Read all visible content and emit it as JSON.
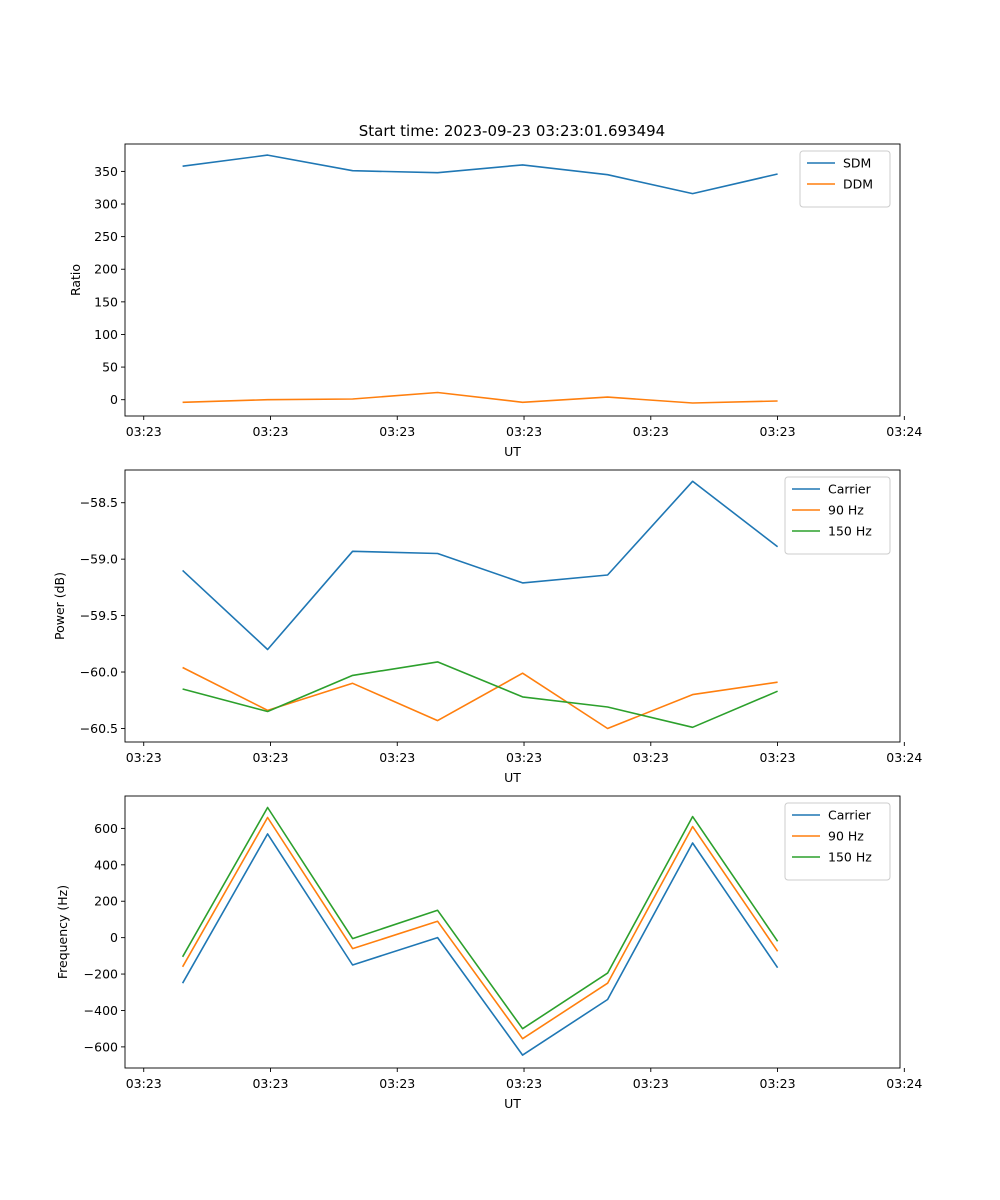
{
  "chart_data": [
    {
      "type": "line",
      "title": "Start time: 2023-09-23 03:23:01.693494",
      "xlabel": "UT",
      "ylabel": "Ratio",
      "xlim": [
        -0.13,
        5.25
      ],
      "ylim": [
        -25,
        392
      ],
      "x": [
        0.27,
        0.86,
        1.45,
        2.04,
        2.63,
        3.22,
        3.81,
        4.4
      ],
      "x_ticks": [
        0,
        0.88,
        1.76,
        2.64,
        3.52,
        4.4,
        5.28
      ],
      "x_tick_labels": [
        "03:23",
        "03:23",
        "03:23",
        "03:23",
        "03:23",
        "03:23",
        "03:24"
      ],
      "y_ticks": [
        0,
        50,
        100,
        150,
        200,
        250,
        300,
        350
      ],
      "y_tick_labels": [
        "0",
        "50",
        "100",
        "150",
        "200",
        "250",
        "300",
        "350"
      ],
      "legend_position": "upper-right",
      "series": [
        {
          "name": "SDM",
          "color": "#1f77b4",
          "values": [
            358,
            375,
            351,
            348,
            360,
            345,
            316,
            346
          ]
        },
        {
          "name": "DDM",
          "color": "#ff7f0e",
          "values": [
            -4,
            0,
            1,
            11,
            -4,
            4,
            -5,
            -2
          ]
        }
      ]
    },
    {
      "type": "line",
      "xlabel": "UT",
      "ylabel": "Power (dB)",
      "xlim": [
        -0.13,
        5.25
      ],
      "ylim": [
        -60.62,
        -58.21
      ],
      "x": [
        0.27,
        0.86,
        1.45,
        2.04,
        2.63,
        3.22,
        3.81,
        4.4
      ],
      "x_ticks": [
        0,
        0.88,
        1.76,
        2.64,
        3.52,
        4.4,
        5.28
      ],
      "x_tick_labels": [
        "03:23",
        "03:23",
        "03:23",
        "03:23",
        "03:23",
        "03:23",
        "03:24"
      ],
      "y_ticks": [
        -60.5,
        -60.0,
        -59.5,
        -59.0,
        -58.5
      ],
      "y_tick_labels": [
        "−60.5",
        "−60.0",
        "−59.5",
        "−59.0",
        "−58.5"
      ],
      "legend_position": "upper-right",
      "series": [
        {
          "name": "Carrier",
          "color": "#1f77b4",
          "values": [
            -59.1,
            -59.8,
            -58.93,
            -58.95,
            -59.21,
            -59.14,
            -58.31,
            -58.89
          ]
        },
        {
          "name": "90 Hz",
          "color": "#ff7f0e",
          "values": [
            -59.96,
            -60.34,
            -60.1,
            -60.43,
            -60.01,
            -60.5,
            -60.2,
            -60.09
          ]
        },
        {
          "name": "150 Hz",
          "color": "#2ca02c",
          "values": [
            -60.15,
            -60.35,
            -60.03,
            -59.91,
            -60.22,
            -60.31,
            -60.49,
            -60.17
          ]
        }
      ]
    },
    {
      "type": "line",
      "xlabel": "UT",
      "ylabel": "Frequency (Hz)",
      "xlim": [
        -0.13,
        5.25
      ],
      "ylim": [
        -716,
        778
      ],
      "x": [
        0.27,
        0.86,
        1.45,
        2.04,
        2.63,
        3.22,
        3.81,
        4.4
      ],
      "x_ticks": [
        0,
        0.88,
        1.76,
        2.64,
        3.52,
        4.4,
        5.28
      ],
      "x_tick_labels": [
        "03:23",
        "03:23",
        "03:23",
        "03:23",
        "03:23",
        "03:23",
        "03:24"
      ],
      "y_ticks": [
        -600,
        -400,
        -200,
        0,
        200,
        400,
        600
      ],
      "y_tick_labels": [
        "−600",
        "−400",
        "−200",
        "0",
        "200",
        "400",
        "600"
      ],
      "legend_position": "upper-right",
      "series": [
        {
          "name": "Carrier",
          "color": "#1f77b4",
          "values": [
            -250,
            570,
            -150,
            0,
            -645,
            -340,
            520,
            -165
          ]
        },
        {
          "name": "90 Hz",
          "color": "#ff7f0e",
          "values": [
            -160,
            660,
            -60,
            90,
            -555,
            -250,
            610,
            -75
          ]
        },
        {
          "name": "150 Hz",
          "color": "#2ca02c",
          "values": [
            -105,
            715,
            -5,
            150,
            -500,
            -195,
            665,
            -20
          ]
        }
      ]
    }
  ]
}
